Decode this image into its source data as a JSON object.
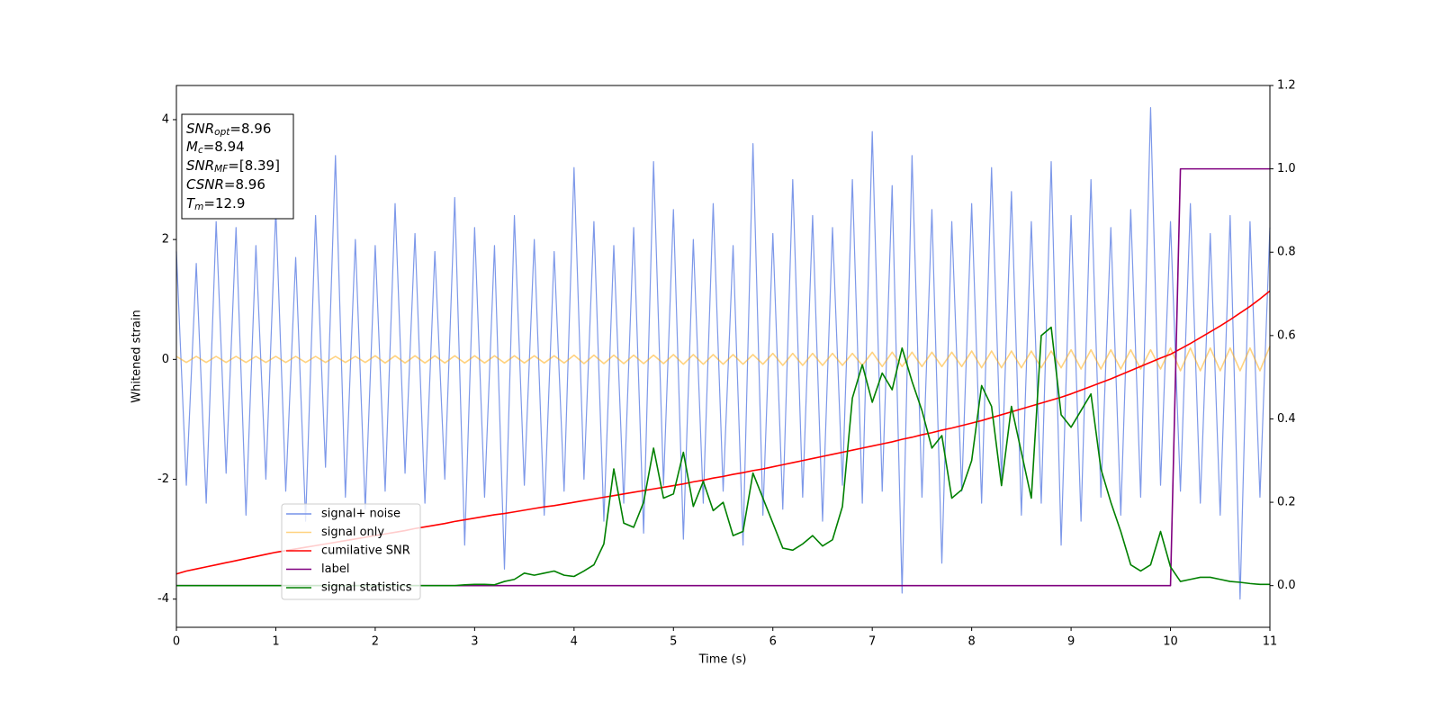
{
  "chart_data": {
    "type": "line",
    "xlabel": "Time (s)",
    "ylabel": "Whitened strain",
    "annotation": [
      {
        "main": "SNR",
        "sub": "opt",
        "rest": "=8.96"
      },
      {
        "main": "M",
        "sub": "c",
        "rest": "=8.94"
      },
      {
        "main": "SNR",
        "sub": "MF",
        "rest": "=[8.39]"
      },
      {
        "main": "CSNR",
        "sub": null,
        "rest": "=8.96"
      },
      {
        "main": "T",
        "sub": "m",
        "rest": "=12.9"
      }
    ],
    "xlim": [
      0,
      11
    ],
    "xticks": [
      0,
      1,
      2,
      3,
      4,
      5,
      6,
      7,
      8,
      9,
      10,
      11
    ],
    "ylim": [
      -4.47,
      4.57
    ],
    "yticks": [
      -4,
      -2,
      0,
      2,
      4
    ],
    "y2lim": [
      -0.1,
      1.2
    ],
    "y2ticks": [
      {
        "value": 0,
        "label": "0.0"
      },
      0.2,
      0.4,
      0.6,
      0.8,
      {
        "value": 1,
        "label": "1.0"
      },
      1.2
    ],
    "legend": "lower left",
    "x": [
      0,
      0.1,
      0.2,
      0.3,
      0.4,
      0.5,
      0.6,
      0.7,
      0.8,
      0.9,
      1,
      1.1,
      1.2,
      1.3,
      1.4,
      1.5,
      1.6,
      1.7,
      1.8,
      1.9,
      2,
      2.1,
      2.2,
      2.3,
      2.4,
      2.5,
      2.6,
      2.7,
      2.8,
      2.9,
      3,
      3.1,
      3.2,
      3.3,
      3.4,
      3.5,
      3.6,
      3.7,
      3.8,
      3.9,
      4,
      4.1,
      4.2,
      4.3,
      4.4,
      4.5,
      4.6,
      4.7,
      4.8,
      4.9,
      5,
      5.1,
      5.2,
      5.3,
      5.4,
      5.5,
      5.6,
      5.7,
      5.8,
      5.9,
      6,
      6.1,
      6.2,
      6.3,
      6.4,
      6.5,
      6.6,
      6.7,
      6.8,
      6.9,
      7,
      7.1,
      7.2,
      7.3,
      7.4,
      7.5,
      7.6,
      7.7,
      7.8,
      7.9,
      8,
      8.1,
      8.2,
      8.3,
      8.4,
      8.5,
      8.6,
      8.7,
      8.8,
      8.9,
      9,
      9.1,
      9.2,
      9.3,
      9.4,
      9.5,
      9.6,
      9.7,
      9.8,
      9.9,
      10,
      10.1,
      10.2,
      10.3,
      10.4,
      10.5,
      10.6,
      10.7,
      10.8,
      10.9,
      11
    ],
    "series": [
      {
        "name": "signal+ noise",
        "color": "#7692e8",
        "axis": "y",
        "values": [
          1.8,
          -2.1,
          1.6,
          -2.4,
          2.3,
          -1.9,
          2.2,
          -2.6,
          1.9,
          -2.0,
          2.5,
          -2.2,
          1.7,
          -2.7,
          2.4,
          -1.8,
          3.4,
          -2.3,
          2.0,
          -2.5,
          1.9,
          -2.2,
          2.6,
          -1.9,
          2.1,
          -2.4,
          1.8,
          -2.0,
          2.7,
          -3.1,
          2.2,
          -2.3,
          1.9,
          -3.5,
          2.4,
          -2.1,
          2.0,
          -2.6,
          1.8,
          -2.2,
          3.2,
          -2.0,
          2.3,
          -2.7,
          1.9,
          -2.4,
          2.2,
          -2.9,
          3.3,
          -2.1,
          2.5,
          -3.0,
          2.0,
          -2.4,
          2.6,
          -2.2,
          1.9,
          -3.1,
          3.6,
          -2.6,
          2.1,
          -2.5,
          3.0,
          -2.3,
          2.4,
          -2.7,
          2.2,
          -2.1,
          3.0,
          -2.4,
          3.8,
          -2.2,
          2.9,
          -3.9,
          3.4,
          -2.3,
          2.5,
          -3.4,
          2.3,
          -2.2,
          2.6,
          -2.4,
          3.2,
          -2.0,
          2.8,
          -2.6,
          2.3,
          -2.4,
          3.3,
          -3.1,
          2.4,
          -2.7,
          3.0,
          -2.3,
          2.2,
          -2.6,
          2.5,
          -2.3,
          4.2,
          -2.1,
          2.3,
          -2.2,
          2.6,
          -2.4,
          2.1,
          -2.6,
          2.4,
          -4.0,
          2.3,
          -2.3,
          2.2
        ]
      },
      {
        "name": "signal only",
        "color": "#ffa500",
        "axis": "y",
        "values": [
          0.05,
          -0.05,
          0.05,
          -0.05,
          0.05,
          -0.05,
          0.05,
          -0.05,
          0.05,
          -0.05,
          0.05,
          -0.05,
          0.05,
          -0.05,
          0.05,
          -0.05,
          0.05,
          -0.05,
          0.05,
          -0.05,
          0.06,
          -0.06,
          0.06,
          -0.06,
          0.06,
          -0.06,
          0.06,
          -0.06,
          0.06,
          -0.06,
          0.06,
          -0.06,
          0.06,
          -0.06,
          0.06,
          -0.06,
          0.06,
          -0.06,
          0.06,
          -0.06,
          0.07,
          -0.07,
          0.07,
          -0.07,
          0.07,
          -0.07,
          0.07,
          -0.07,
          0.07,
          -0.07,
          0.08,
          -0.08,
          0.08,
          -0.08,
          0.08,
          -0.08,
          0.08,
          -0.08,
          0.08,
          -0.08,
          0.1,
          -0.1,
          0.1,
          -0.1,
          0.1,
          -0.1,
          0.1,
          -0.1,
          0.1,
          -0.1,
          0.12,
          -0.12,
          0.12,
          -0.12,
          0.12,
          -0.12,
          0.12,
          -0.12,
          0.12,
          -0.12,
          0.14,
          -0.14,
          0.14,
          -0.14,
          0.14,
          -0.14,
          0.14,
          -0.14,
          0.14,
          -0.14,
          0.16,
          -0.16,
          0.16,
          -0.16,
          0.16,
          -0.16,
          0.16,
          -0.16,
          0.16,
          -0.16,
          0.19,
          -0.19,
          0.19,
          -0.19,
          0.19,
          -0.19,
          0.19,
          -0.19,
          0.19,
          -0.19,
          0.22
        ]
      },
      {
        "name": "cumilative SNR",
        "color": "#ff0000",
        "axis": "y2",
        "values": [
          0.028,
          0.035,
          0.04,
          0.045,
          0.05,
          0.055,
          0.06,
          0.065,
          0.07,
          0.075,
          0.08,
          0.084,
          0.088,
          0.092,
          0.096,
          0.1,
          0.104,
          0.108,
          0.112,
          0.116,
          0.12,
          0.124,
          0.128,
          0.132,
          0.137,
          0.141,
          0.145,
          0.149,
          0.154,
          0.158,
          0.162,
          0.166,
          0.17,
          0.173,
          0.177,
          0.181,
          0.185,
          0.189,
          0.192,
          0.196,
          0.2,
          0.204,
          0.208,
          0.212,
          0.216,
          0.22,
          0.224,
          0.228,
          0.232,
          0.236,
          0.24,
          0.244,
          0.249,
          0.253,
          0.258,
          0.262,
          0.267,
          0.271,
          0.276,
          0.28,
          0.285,
          0.29,
          0.295,
          0.3,
          0.305,
          0.31,
          0.315,
          0.32,
          0.325,
          0.33,
          0.335,
          0.34,
          0.345,
          0.351,
          0.356,
          0.362,
          0.367,
          0.373,
          0.378,
          0.384,
          0.39,
          0.396,
          0.403,
          0.41,
          0.417,
          0.424,
          0.431,
          0.438,
          0.445,
          0.452,
          0.46,
          0.469,
          0.478,
          0.487,
          0.496,
          0.506,
          0.516,
          0.526,
          0.536,
          0.546,
          0.555,
          0.568,
          0.581,
          0.595,
          0.609,
          0.623,
          0.638,
          0.654,
          0.67,
          0.688,
          0.707
        ]
      },
      {
        "name": "label",
        "color": "#800080",
        "axis": "y2",
        "values": [
          0,
          0,
          0,
          0,
          0,
          0,
          0,
          0,
          0,
          0,
          0,
          0,
          0,
          0,
          0,
          0,
          0,
          0,
          0,
          0,
          0,
          0,
          0,
          0,
          0,
          0,
          0,
          0,
          0,
          0,
          0,
          0,
          0,
          0,
          0,
          0,
          0,
          0,
          0,
          0,
          0,
          0,
          0,
          0,
          0,
          0,
          0,
          0,
          0,
          0,
          0,
          0,
          0,
          0,
          0,
          0,
          0,
          0,
          0,
          0,
          0,
          0,
          0,
          0,
          0,
          0,
          0,
          0,
          0,
          0,
          0,
          0,
          0,
          0,
          0,
          0,
          0,
          0,
          0,
          0,
          0,
          0,
          0,
          0,
          0,
          0,
          0,
          0,
          0,
          0,
          0,
          0,
          0,
          0,
          0,
          0,
          0,
          0,
          0,
          0,
          0,
          1,
          1,
          1,
          1,
          1,
          1,
          1,
          1,
          1,
          1
        ]
      },
      {
        "name": "signal statistics",
        "color": "#008000",
        "axis": "y2",
        "values": [
          0,
          0,
          0,
          0,
          0,
          0,
          0,
          0,
          0,
          0,
          0,
          0,
          0,
          0,
          0,
          0,
          0,
          0,
          0,
          0,
          0,
          0,
          0,
          0,
          0,
          0,
          0,
          0,
          0,
          0.002,
          0.003,
          0.003,
          0.002,
          0.01,
          0.015,
          0.03,
          0.025,
          0.03,
          0.035,
          0.025,
          0.022,
          0.035,
          0.05,
          0.1,
          0.28,
          0.15,
          0.14,
          0.2,
          0.33,
          0.21,
          0.22,
          0.32,
          0.19,
          0.25,
          0.18,
          0.2,
          0.12,
          0.13,
          0.27,
          0.21,
          0.15,
          0.09,
          0.085,
          0.1,
          0.12,
          0.095,
          0.11,
          0.19,
          0.45,
          0.53,
          0.44,
          0.51,
          0.47,
          0.57,
          0.49,
          0.42,
          0.33,
          0.36,
          0.21,
          0.23,
          0.3,
          0.48,
          0.43,
          0.24,
          0.43,
          0.32,
          0.21,
          0.6,
          0.62,
          0.41,
          0.38,
          0.42,
          0.46,
          0.28,
          0.2,
          0.13,
          0.05,
          0.035,
          0.05,
          0.13,
          0.045,
          0.01,
          0.015,
          0.02,
          0.02,
          0.015,
          0.01,
          0.008,
          0.005,
          0.003,
          0.003
        ]
      }
    ]
  }
}
